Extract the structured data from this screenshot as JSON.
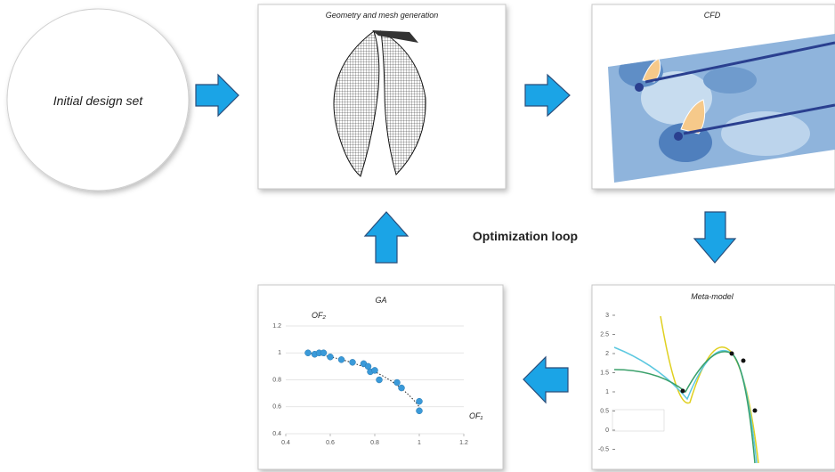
{
  "initial_design": "Initial design set",
  "loop_label": "Optimization loop",
  "panels": {
    "mesh": {
      "title": "Geometry and mesh generation"
    },
    "cfd": {
      "title": "CFD"
    },
    "meta_model": {
      "title": "Meta-model",
      "yticks": [
        3,
        2.5,
        2,
        1.5,
        1,
        0.5,
        0,
        -0.5
      ]
    },
    "ga": {
      "type": "scatter",
      "title": "GA",
      "x_label": "OF₁",
      "y_label": "OF₂",
      "x": [
        0.5,
        0.53,
        0.55,
        0.57,
        0.6,
        0.65,
        0.7,
        0.75,
        0.77,
        0.78,
        0.8,
        0.82,
        0.9,
        0.92,
        1.0,
        1.0
      ],
      "y": [
        1.0,
        0.99,
        1.0,
        1.0,
        0.97,
        0.95,
        0.93,
        0.92,
        0.9,
        0.86,
        0.87,
        0.8,
        0.78,
        0.74,
        0.64,
        0.57
      ],
      "xlim": [
        0.4,
        1.2
      ],
      "ylim": [
        0.4,
        1.2
      ],
      "xticks": [
        0.4,
        0.6,
        0.8,
        1,
        1.2
      ],
      "yticks": [
        0.4,
        0.6,
        0.8,
        1,
        1.2
      ],
      "color": "#3a9ad9",
      "grid": true
    }
  }
}
